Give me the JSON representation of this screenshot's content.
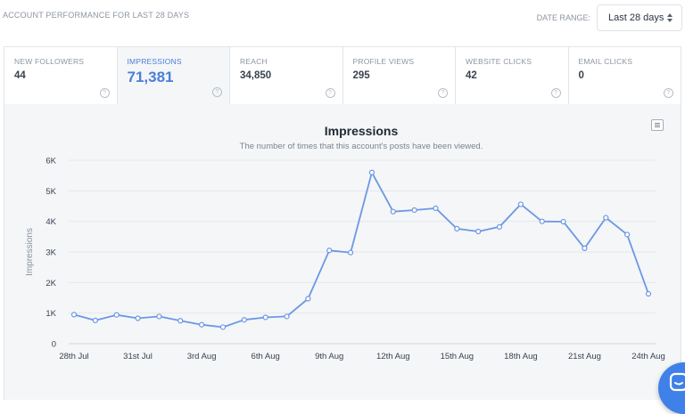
{
  "header": {
    "title": "ACCOUNT PERFORMANCE FOR LAST 28 DAYS",
    "date_range_label": "DATE RANGE:",
    "date_range_value": "Last 28 days"
  },
  "metrics": [
    {
      "label": "NEW FOLLOWERS",
      "value": "44"
    },
    {
      "label": "IMPRESSIONS",
      "value": "71,381"
    },
    {
      "label": "REACH",
      "value": "34,850"
    },
    {
      "label": "PROFILE VIEWS",
      "value": "295"
    },
    {
      "label": "WEBSITE CLICKS",
      "value": "42"
    },
    {
      "label": "EMAIL CLICKS",
      "value": "0"
    }
  ],
  "help_glyph": "?",
  "icons": {
    "date_select": "sort-icon",
    "help": "help-icon",
    "menu": "menu-icon",
    "chat": "chat-icon"
  },
  "colors": {
    "accent": "#4a7fd9",
    "line": "#6d97e3",
    "panel_bg": "#f4f6f8",
    "chat_button": "#3f81e8"
  },
  "chart_data": {
    "type": "line",
    "title": "Impressions",
    "subtitle": "The number of times that this account's posts have been viewed.",
    "ylabel": "Impressions",
    "xlabel": "",
    "ylim": [
      0,
      6000
    ],
    "y_ticks": [
      0,
      1000,
      2000,
      3000,
      4000,
      5000,
      6000
    ],
    "y_tick_labels": [
      "0",
      "1K",
      "2K",
      "3K",
      "4K",
      "5K",
      "6K"
    ],
    "x_tick_labels": [
      "28th Jul",
      "31st Jul",
      "3rd Aug",
      "6th Aug",
      "9th Aug",
      "12th Aug",
      "15th Aug",
      "18th Aug",
      "21st Aug",
      "24th Aug"
    ],
    "x_tick_every": 3,
    "grid": true,
    "series": [
      {
        "values": [
          950,
          760,
          940,
          830,
          890,
          750,
          620,
          540,
          780,
          860,
          890,
          1470,
          3050,
          2980,
          5600,
          4320,
          4370,
          4430,
          3760,
          3670,
          3820,
          4560,
          4000,
          3990,
          3120,
          4120,
          3570,
          1630
        ]
      }
    ]
  }
}
